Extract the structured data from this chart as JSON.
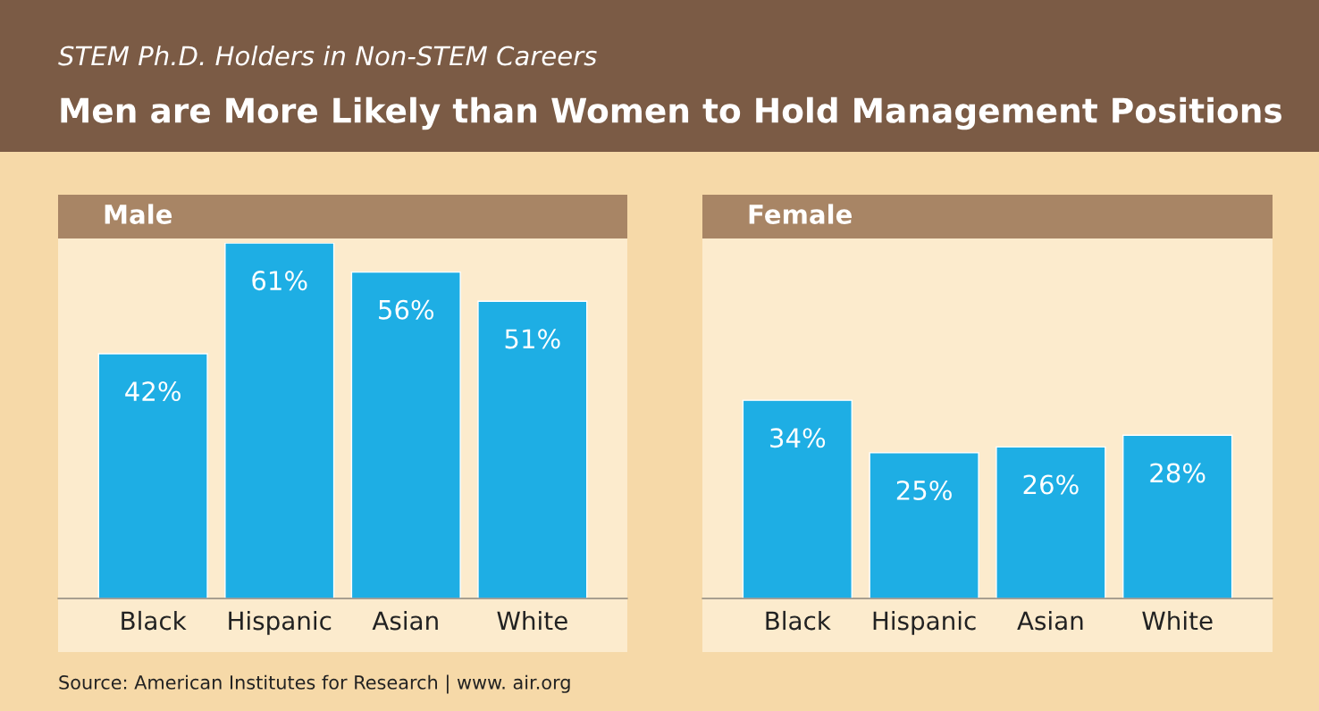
{
  "chart_data": [
    {
      "type": "other",
      "subtitle": "STEM Ph.D. Holders in Non-STEM Careers",
      "title": "Men are More Likely than Women to Hold Management Positions",
      "annotations": [
        "Source: American Institutes for Research | www. air.org"
      ]
    },
    {
      "type": "bar",
      "title": "Male",
      "categories": [
        "Black",
        "Hispanic",
        "Asian",
        "White"
      ],
      "values": [
        42,
        61,
        56,
        51
      ],
      "value_labels": [
        "42%",
        "61%",
        "56%",
        "51%"
      ],
      "color": "#1eaee4",
      "tick_labels": "x"
    },
    {
      "type": "bar",
      "title": "Female",
      "categories": [
        "Black",
        "Hispanic",
        "Asian",
        "White"
      ],
      "values": [
        34,
        25,
        26,
        28
      ],
      "value_labels": [
        "34%",
        "25%",
        "26%",
        "28%"
      ],
      "color": "#1eaee4",
      "tick_labels": "x"
    }
  ]
}
